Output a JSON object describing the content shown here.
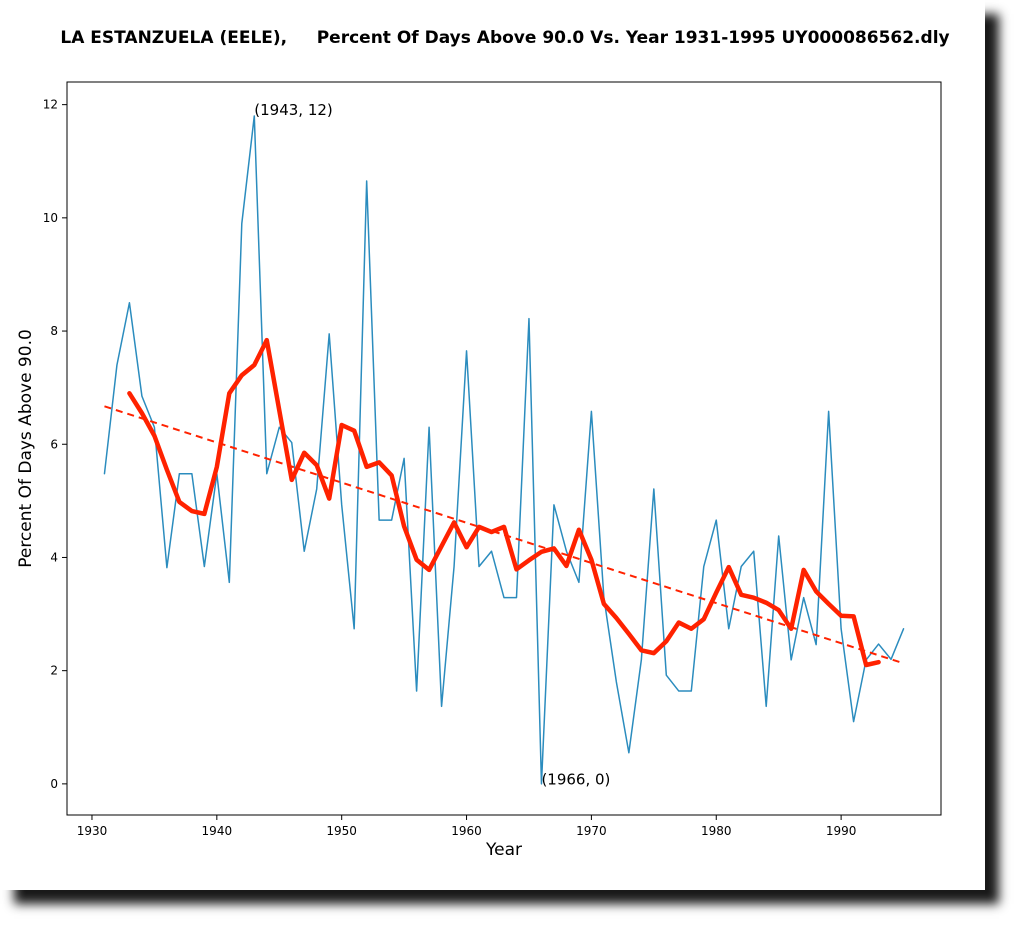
{
  "chart_data": {
    "type": "line",
    "title": "LA ESTANZUELA (EELE),     Percent Of Days Above 90.0 Vs. Year 1931-1995 UY000086562.dly",
    "xlabel": "Year",
    "ylabel": "Percent Of Days Above 90.0",
    "xlim": [
      1928,
      1998
    ],
    "ylim": [
      -0.55,
      12.4
    ],
    "xticks": [
      1930,
      1940,
      1950,
      1960,
      1970,
      1980,
      1990
    ],
    "yticks": [
      0,
      2,
      4,
      6,
      8,
      10,
      12
    ],
    "grid": false,
    "series": [
      {
        "color": "#2b8cbe",
        "style": "thin",
        "x": [
          1931,
          1932,
          1933,
          1934,
          1935,
          1936,
          1937,
          1938,
          1939,
          1940,
          1941,
          1942,
          1943,
          1944,
          1945,
          1946,
          1947,
          1948,
          1949,
          1950,
          1951,
          1952,
          1953,
          1954,
          1955,
          1956,
          1957,
          1958,
          1959,
          1960,
          1961,
          1962,
          1963,
          1964,
          1965,
          1966,
          1967,
          1968,
          1969,
          1970,
          1971,
          1972,
          1973,
          1974,
          1975,
          1976,
          1977,
          1978,
          1979,
          1980,
          1981,
          1982,
          1983,
          1984,
          1985,
          1986,
          1987,
          1988,
          1989,
          1990,
          1991,
          1992,
          1993,
          1994,
          1995
        ],
        "y": [
          5.48,
          7.4,
          8.5,
          6.85,
          6.3,
          3.82,
          5.48,
          5.48,
          3.84,
          5.48,
          3.56,
          9.9,
          11.8,
          5.48,
          6.3,
          6.03,
          4.11,
          5.21,
          7.95,
          4.93,
          2.74,
          10.65,
          4.66,
          4.66,
          5.75,
          1.64,
          6.3,
          1.37,
          3.84,
          7.65,
          3.84,
          4.11,
          3.29,
          3.29,
          8.22,
          0.0,
          4.93,
          4.11,
          3.56,
          6.58,
          3.29,
          1.8,
          0.55,
          2.19,
          5.21,
          1.92,
          1.64,
          1.64,
          3.84,
          4.66,
          2.74,
          3.84,
          4.11,
          1.37,
          4.38,
          2.19,
          3.29,
          2.46,
          6.58,
          2.74,
          1.1,
          2.19,
          2.47,
          2.2,
          2.74
        ]
      },
      {
        "color": "#ff2200",
        "style": "thick",
        "x": [
          1933,
          1934,
          1935,
          1936,
          1937,
          1938,
          1939,
          1940,
          1941,
          1942,
          1943,
          1944,
          1945,
          1946,
          1947,
          1948,
          1949,
          1950,
          1951,
          1952,
          1953,
          1954,
          1955,
          1956,
          1957,
          1958,
          1959,
          1960,
          1961,
          1962,
          1963,
          1964,
          1965,
          1966,
          1967,
          1968,
          1969,
          1970,
          1971,
          1972,
          1973,
          1974,
          1975,
          1976,
          1977,
          1978,
          1979,
          1980,
          1981,
          1982,
          1983,
          1984,
          1985,
          1986,
          1987,
          1988,
          1989,
          1990,
          1991,
          1992,
          1993
        ],
        "y": [
          6.9,
          6.55,
          6.15,
          5.55,
          4.98,
          4.82,
          4.77,
          5.6,
          6.9,
          7.22,
          7.4,
          7.84,
          6.6,
          5.37,
          5.85,
          5.63,
          5.04,
          6.34,
          6.24,
          5.6,
          5.68,
          5.45,
          4.55,
          3.96,
          3.78,
          4.2,
          4.62,
          4.18,
          4.54,
          4.45,
          4.54,
          3.79,
          3.95,
          4.1,
          4.16,
          3.85,
          4.49,
          3.96,
          3.18,
          2.93,
          2.65,
          2.36,
          2.31,
          2.52,
          2.85,
          2.74,
          2.91,
          3.38,
          3.83,
          3.34,
          3.29,
          3.2,
          3.07,
          2.74,
          3.78,
          3.4,
          3.18,
          2.97,
          2.96,
          2.1,
          2.15
        ]
      },
      {
        "color": "#ff2200",
        "style": "dashed",
        "x": [
          1931,
          1995
        ],
        "y": [
          6.67,
          2.13
        ]
      }
    ],
    "annotations": [
      {
        "text": "(1943, 12)",
        "x": 1943,
        "y": 11.8
      },
      {
        "text": "(1966, 0)",
        "x": 1966,
        "y": 0.0
      }
    ]
  }
}
